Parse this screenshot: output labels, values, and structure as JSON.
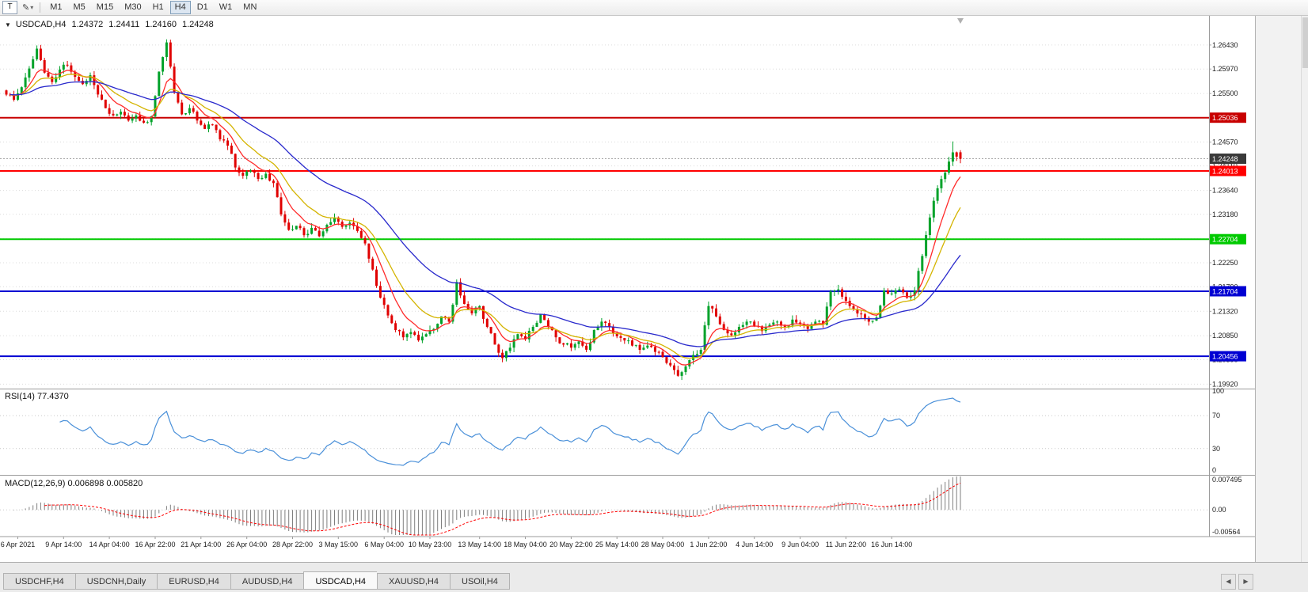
{
  "icons": {
    "collapse": "▼",
    "draw": "✎",
    "dropdown": "▾",
    "tab_left": "◀",
    "tab_right": "▶"
  },
  "toolbar": {
    "text_tool_label": "T",
    "timeframes": [
      "M1",
      "M5",
      "M15",
      "M30",
      "H1",
      "H4",
      "D1",
      "W1",
      "MN"
    ],
    "active_timeframe": "H4"
  },
  "chart": {
    "symbol_header": "USDCAD,H4",
    "ohlc": {
      "open": "1.24372",
      "high": "1.24411",
      "low": "1.24160",
      "close": "1.24248"
    },
    "price_axis": {
      "labels": [
        "1.26430",
        "1.25970",
        "1.25500",
        "1.25030",
        "1.24570",
        "1.24110",
        "1.23640",
        "1.23180",
        "1.22710",
        "1.22250",
        "1.21790",
        "1.21320",
        "1.20850",
        "1.20390",
        "1.19920"
      ]
    },
    "levels": [
      {
        "label": "1.25036",
        "price": 1.25036,
        "color": "#c80000",
        "style": "solid"
      },
      {
        "label": "1.24248",
        "price": 1.24248,
        "color": "#3a3a3a",
        "style": "current"
      },
      {
        "label": "1.24013",
        "price": 1.24013,
        "color": "#ff0000",
        "style": "solid"
      },
      {
        "label": "1.22704",
        "price": 1.22704,
        "color": "#00ca00",
        "style": "solid"
      },
      {
        "label": "1.21704",
        "price": 1.21704,
        "color": "#0000d2",
        "style": "solid"
      },
      {
        "label": "1.20456",
        "price": 1.20456,
        "color": "#0000d2",
        "style": "solid"
      }
    ],
    "time_axis": [
      "6 Apr 2021",
      "9 Apr 14:00",
      "14 Apr 04:00",
      "16 Apr 22:00",
      "21 Apr 14:00",
      "26 Apr 04:00",
      "28 Apr 22:00",
      "3 May 15:00",
      "6 May 04:00",
      "10 May 23:00",
      "13 May 14:00",
      "18 May 04:00",
      "20 May 22:00",
      "25 May 14:00",
      "28 May 04:00",
      "1 Jun 22:00",
      "4 Jun 14:00",
      "9 Jun 04:00",
      "11 Jun 22:00",
      "16 Jun 14:00"
    ]
  },
  "chart_data": {
    "type": "candlestick",
    "symbol": "USDCAD",
    "timeframe": "H4",
    "price_top": 1.269,
    "price_bottom": 1.1985,
    "up_color": "#00a22a",
    "down_color": "#e00000",
    "close_path": [
      1.2548,
      1.2538,
      1.2562,
      1.2598,
      1.2636,
      1.259,
      1.2572,
      1.2596,
      1.2604,
      1.2582,
      1.2568,
      1.2585,
      1.2548,
      1.2522,
      1.2508,
      1.2515,
      1.2498,
      1.2508,
      1.2494,
      1.2506,
      1.2592,
      1.2648,
      1.2552,
      1.251,
      1.2522,
      1.2498,
      1.2482,
      1.249,
      1.2462,
      1.245,
      1.2408,
      1.2392,
      1.2402,
      1.2386,
      1.2396,
      1.2378,
      1.2318,
      1.2288,
      1.2296,
      1.2278,
      1.2292,
      1.2276,
      1.2298,
      1.2312,
      1.2294,
      1.2302,
      1.2286,
      1.2262,
      1.2212,
      1.2158,
      1.2124,
      1.2096,
      1.2082,
      1.2092,
      1.2076,
      1.2088,
      1.2098,
      1.2122,
      1.2112,
      1.2188,
      1.2146,
      1.2128,
      1.2142,
      1.2102,
      1.2068,
      1.2042,
      1.2062,
      1.2088,
      1.2078,
      1.2102,
      1.2126,
      1.2102,
      1.2082,
      1.2068,
      1.2062,
      1.2074,
      1.2058,
      1.2096,
      1.2112,
      1.2102,
      1.2084,
      1.2076,
      1.2066,
      1.2058,
      1.2066,
      1.2054,
      1.2044,
      1.2028,
      1.2008,
      1.2026,
      1.2048,
      1.2058,
      1.2142,
      1.2122,
      1.2096,
      1.2086,
      1.2102,
      1.2112,
      1.2104,
      1.2094,
      1.2106,
      1.2112,
      1.2102,
      1.2116,
      1.2108,
      1.2098,
      1.2112,
      1.2106,
      1.217,
      1.2174,
      1.2152,
      1.2136,
      1.2126,
      1.2112,
      1.212,
      1.2172,
      1.2166,
      1.2174,
      1.2158,
      1.2172,
      1.2238,
      1.2312,
      1.2368,
      1.2398,
      1.2437,
      1.24248
    ],
    "peak_high": 1.2654,
    "prev_spike_high": 1.2458,
    "last_candle": {
      "o": 1.24372,
      "h": 1.24411,
      "l": 1.2416,
      "c": 1.24248
    },
    "moving_averages": [
      {
        "name": "ma-fast",
        "period": 8,
        "color": "#ff2a2a"
      },
      {
        "name": "ma-mid",
        "period": 16,
        "color": "#d4b400"
      },
      {
        "name": "ma-slow",
        "period": 40,
        "color": "#2929cc"
      }
    ]
  },
  "rsi": {
    "title": "RSI(14) 77.4370",
    "period": 14,
    "color": "#4a90d9",
    "scale_labels": [
      100,
      70,
      30,
      0
    ],
    "guide_levels": [
      70,
      30
    ]
  },
  "macd": {
    "title": "MACD(12,26,9) 0.006898 0.005820",
    "fast": 12,
    "slow": 26,
    "signal_period": 9,
    "scale_top": 0.007495,
    "scale_bottom": -0.00564,
    "scale_labels": {
      "top": "0.007495",
      "zero": "0.00",
      "bottom": "-0.00564"
    },
    "histogram_color": "#7f7f7f",
    "signal_color": "#ff0000"
  },
  "tabs": {
    "items": [
      "USDCHF,H4",
      "USDCNH,Daily",
      "EURUSD,H4",
      "AUDUSD,H4",
      "USDCAD,H4",
      "XAUUSD,H4",
      "USOil,H4"
    ],
    "active": "USDCAD,H4"
  }
}
